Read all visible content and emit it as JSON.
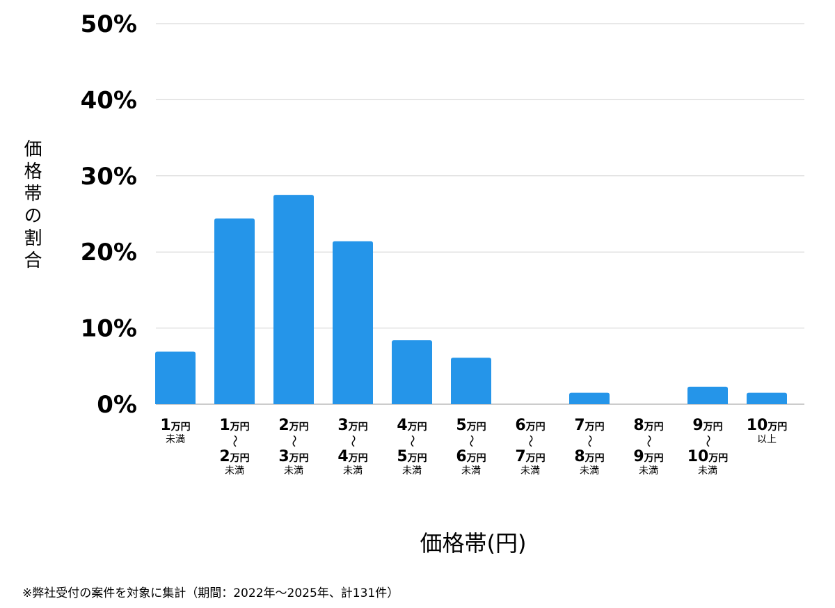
{
  "chart_data": {
    "type": "bar",
    "ylabel": "価格帯の割合",
    "xlabel": "価格帯(円)",
    "ylim": [
      0,
      50
    ],
    "y_ticks": [
      "0%",
      "10%",
      "20%",
      "30%",
      "40%",
      "50%"
    ],
    "grid": true,
    "bar_color": "#2595e9",
    "categories": [
      {
        "lines": [
          {
            "num": "1",
            "unit": "万円"
          },
          {
            "sub": "未満"
          }
        ]
      },
      {
        "lines": [
          {
            "num": "1",
            "unit": "万円"
          },
          {
            "tilde": "〜"
          },
          {
            "num": "2",
            "unit": "万円"
          },
          {
            "sub": "未満"
          }
        ]
      },
      {
        "lines": [
          {
            "num": "2",
            "unit": "万円"
          },
          {
            "tilde": "〜"
          },
          {
            "num": "3",
            "unit": "万円"
          },
          {
            "sub": "未満"
          }
        ]
      },
      {
        "lines": [
          {
            "num": "3",
            "unit": "万円"
          },
          {
            "tilde": "〜"
          },
          {
            "num": "4",
            "unit": "万円"
          },
          {
            "sub": "未満"
          }
        ]
      },
      {
        "lines": [
          {
            "num": "4",
            "unit": "万円"
          },
          {
            "tilde": "〜"
          },
          {
            "num": "5",
            "unit": "万円"
          },
          {
            "sub": "未満"
          }
        ]
      },
      {
        "lines": [
          {
            "num": "5",
            "unit": "万円"
          },
          {
            "tilde": "〜"
          },
          {
            "num": "6",
            "unit": "万円"
          },
          {
            "sub": "未満"
          }
        ]
      },
      {
        "lines": [
          {
            "num": "6",
            "unit": "万円"
          },
          {
            "tilde": "〜"
          },
          {
            "num": "7",
            "unit": "万円"
          },
          {
            "sub": "未満"
          }
        ]
      },
      {
        "lines": [
          {
            "num": "7",
            "unit": "万円"
          },
          {
            "tilde": "〜"
          },
          {
            "num": "8",
            "unit": "万円"
          },
          {
            "sub": "未満"
          }
        ]
      },
      {
        "lines": [
          {
            "num": "8",
            "unit": "万円"
          },
          {
            "tilde": "〜"
          },
          {
            "num": "9",
            "unit": "万円"
          },
          {
            "sub": "未満"
          }
        ]
      },
      {
        "lines": [
          {
            "num": "9",
            "unit": "万円"
          },
          {
            "tilde": "〜"
          },
          {
            "num": "10",
            "unit": "万円"
          },
          {
            "sub": "未満"
          }
        ]
      },
      {
        "lines": [
          {
            "num": "10",
            "unit": "万円"
          },
          {
            "sub": "以上"
          }
        ]
      }
    ],
    "values": [
      6.9,
      24.4,
      27.5,
      21.4,
      8.4,
      6.1,
      0,
      1.5,
      0,
      2.3,
      1.5
    ]
  },
  "note": "※弊社受付の案件を対象に集計（期間：2022年〜2025年、計131件）"
}
